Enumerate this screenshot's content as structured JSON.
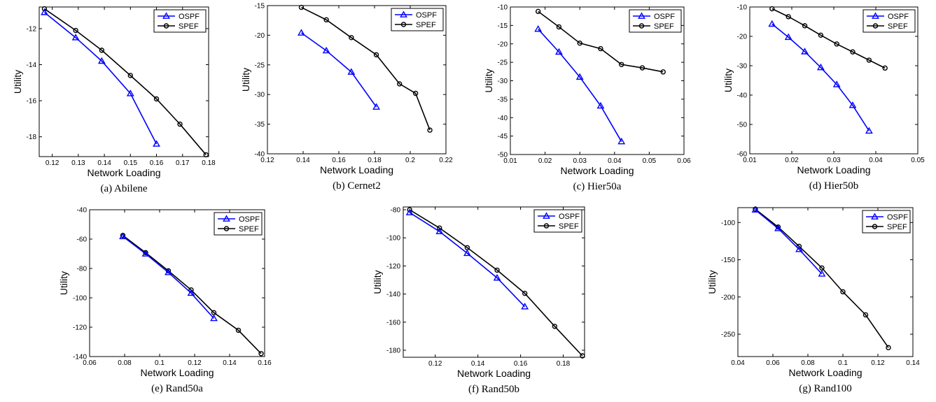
{
  "figure": {
    "series_colors": {
      "OSPF": "#0000ff",
      "SPEF": "#000000"
    },
    "series_markers": {
      "OSPF": "triangle",
      "SPEF": "circle"
    }
  },
  "chart_data": [
    {
      "type": "line",
      "caption": "(a) Abilene",
      "xlabel": "Network Loading",
      "ylabel": "Utility",
      "xlim": [
        0.115,
        0.18
      ],
      "ylim": [
        -19.1,
        -10.8
      ],
      "xticks": [
        0.12,
        0.13,
        0.14,
        0.15,
        0.16,
        0.17,
        0.18
      ],
      "xticklabels": [
        "0.12",
        "0.13",
        "0.14",
        "0.15",
        "0.16",
        "0.17",
        "0.18"
      ],
      "yticks": [
        -18,
        -16,
        -14,
        -12
      ],
      "yticklabels": [
        "-18",
        "-16",
        "-14",
        "-12"
      ],
      "legend": "top-right",
      "series": [
        {
          "name": "OSPF",
          "x": [
            0.117,
            0.129,
            0.139,
            0.15,
            0.16
          ],
          "y": [
            -11.1,
            -12.5,
            -13.8,
            -15.6,
            -18.4
          ]
        },
        {
          "name": "SPEF",
          "x": [
            0.117,
            0.129,
            0.139,
            0.15,
            0.16,
            0.169,
            0.179
          ],
          "y": [
            -10.9,
            -12.1,
            -13.2,
            -14.6,
            -15.9,
            -17.3,
            -19.0
          ]
        }
      ]
    },
    {
      "type": "line",
      "caption": "(b) Cernet2",
      "xlabel": "Network Loading",
      "ylabel": "Utility",
      "xlim": [
        0.12,
        0.22
      ],
      "ylim": [
        -40,
        -15
      ],
      "xticks": [
        0.12,
        0.14,
        0.16,
        0.18,
        0.2,
        0.22
      ],
      "xticklabels": [
        "0.12",
        "0.14",
        "0.16",
        "0.18",
        "0.2",
        "0.22"
      ],
      "yticks": [
        -40,
        -35,
        -30,
        -25,
        -20,
        -15
      ],
      "yticklabels": [
        "-40",
        "-35",
        "-30",
        "-25",
        "-20",
        "-15"
      ],
      "legend": "top-right",
      "series": [
        {
          "name": "OSPF",
          "x": [
            0.139,
            0.153,
            0.167,
            0.181
          ],
          "y": [
            -19.6,
            -22.6,
            -26.2,
            -32.1
          ]
        },
        {
          "name": "SPEF",
          "x": [
            0.139,
            0.153,
            0.167,
            0.181,
            0.194,
            0.203,
            0.211
          ],
          "y": [
            -15.3,
            -17.4,
            -20.4,
            -23.3,
            -28.2,
            -29.8,
            -36.0
          ]
        }
      ]
    },
    {
      "type": "line",
      "caption": "(c) Hier50a",
      "xlabel": "Network Loading",
      "ylabel": "Utility",
      "xlim": [
        0.01,
        0.06
      ],
      "ylim": [
        -50,
        -10
      ],
      "xticks": [
        0.01,
        0.02,
        0.03,
        0.04,
        0.05,
        0.06
      ],
      "xticklabels": [
        "0.01",
        "0.02",
        "0.03",
        "0.04",
        "0.05",
        "0.06"
      ],
      "yticks": [
        -50,
        -45,
        -40,
        -35,
        -30,
        -25,
        -20,
        -15,
        -10
      ],
      "yticklabels": [
        "-50",
        "-45",
        "-40",
        "-35",
        "-30",
        "-25",
        "-20",
        "-15",
        "-10"
      ],
      "legend": "top-right",
      "series": [
        {
          "name": "OSPF",
          "x": [
            0.018,
            0.024,
            0.03,
            0.036,
            0.042
          ],
          "y": [
            -16.0,
            -22.2,
            -29.0,
            -36.8,
            -46.5
          ]
        },
        {
          "name": "SPEF",
          "x": [
            0.018,
            0.024,
            0.03,
            0.036,
            0.042,
            0.048,
            0.054
          ],
          "y": [
            -11.2,
            -15.4,
            -19.8,
            -21.3,
            -25.6,
            -26.5,
            -27.6
          ]
        }
      ]
    },
    {
      "type": "line",
      "caption": "(d) Hier50b",
      "xlabel": "Network Loading",
      "ylabel": "Utility",
      "xlim": [
        0.01,
        0.05
      ],
      "ylim": [
        -60,
        -10
      ],
      "xticks": [
        0.01,
        0.02,
        0.03,
        0.04,
        0.05
      ],
      "xticklabels": [
        "0.01",
        "0.02",
        "0.03",
        "0.04",
        "0.05"
      ],
      "yticks": [
        -60,
        -50,
        -40,
        -30,
        -20,
        -10
      ],
      "yticklabels": [
        "-60",
        "-50",
        "-40",
        "-30",
        "-20",
        "-10"
      ],
      "legend": "top-right",
      "series": [
        {
          "name": "OSPF",
          "x": [
            0.0153,
            0.0192,
            0.0231,
            0.0269,
            0.0307,
            0.0345,
            0.0384
          ],
          "y": [
            -15.8,
            -20.3,
            -25.2,
            -30.6,
            -36.4,
            -43.5,
            -52.2
          ]
        },
        {
          "name": "SPEF",
          "x": [
            0.0153,
            0.0192,
            0.0231,
            0.0269,
            0.0307,
            0.0345,
            0.0384,
            0.0422
          ],
          "y": [
            -10.6,
            -13.3,
            -16.4,
            -19.6,
            -22.6,
            -25.3,
            -28.1,
            -30.8
          ]
        }
      ]
    },
    {
      "type": "line",
      "caption": "(e) Rand50a",
      "xlabel": "Network Loading",
      "ylabel": "Utility",
      "xlim": [
        0.06,
        0.16
      ],
      "ylim": [
        -140,
        -40
      ],
      "xticks": [
        0.06,
        0.08,
        0.1,
        0.12,
        0.14,
        0.16
      ],
      "xticklabels": [
        "0.06",
        "0.08",
        "0.1",
        "0.12",
        "0.14",
        "0.16"
      ],
      "yticks": [
        -140,
        -120,
        -100,
        -80,
        -60,
        -40
      ],
      "yticklabels": [
        "-140",
        "-120",
        "-100",
        "-80",
        "-60",
        "-40"
      ],
      "legend": "top-right",
      "series": [
        {
          "name": "OSPF",
          "x": [
            0.079,
            0.092,
            0.105,
            0.118,
            0.131
          ],
          "y": [
            -58.2,
            -70.0,
            -82.7,
            -96.8,
            -114.0
          ]
        },
        {
          "name": "SPEF",
          "x": [
            0.079,
            0.092,
            0.105,
            0.118,
            0.131,
            0.145,
            0.158
          ],
          "y": [
            -57.5,
            -69.2,
            -81.6,
            -94.6,
            -110.1,
            -122.1,
            -138.0
          ]
        }
      ]
    },
    {
      "type": "line",
      "caption": "(f) Rand50b",
      "xlabel": "Network Loading",
      "ylabel": "Utility",
      "xlim": [
        0.105,
        0.19
      ],
      "ylim": [
        -185,
        -78
      ],
      "xticks": [
        0.12,
        0.14,
        0.16,
        0.18
      ],
      "xticklabels": [
        "0.12",
        "0.14",
        "0.16",
        "0.18"
      ],
      "yticks": [
        -180,
        -160,
        -140,
        -120,
        -100,
        -80
      ],
      "yticklabels": [
        "-180",
        "-160",
        "-140",
        "-120",
        "-100",
        "-80"
      ],
      "legend": "top-right",
      "series": [
        {
          "name": "OSPF",
          "x": [
            0.108,
            0.122,
            0.135,
            0.149,
            0.162
          ],
          "y": [
            -82.0,
            -95.5,
            -111.0,
            -128.5,
            -149.0
          ]
        },
        {
          "name": "SPEF",
          "x": [
            0.108,
            0.122,
            0.135,
            0.149,
            0.162,
            0.176,
            0.189
          ],
          "y": [
            -80.0,
            -93.0,
            -107.0,
            -123.0,
            -139.5,
            -163.0,
            -184.0
          ]
        }
      ]
    },
    {
      "type": "line",
      "caption": "(g) Rand100",
      "xlabel": "Network Loading",
      "ylabel": "Utility",
      "xlim": [
        0.04,
        0.14
      ],
      "ylim": [
        -280,
        -80
      ],
      "xticks": [
        0.04,
        0.06,
        0.08,
        0.1,
        0.12,
        0.14
      ],
      "xticklabels": [
        "0.04",
        "0.06",
        "0.08",
        "0.1",
        "0.12",
        "0.14"
      ],
      "yticks": [
        -250,
        -200,
        -150,
        -100
      ],
      "yticklabels": [
        "-250",
        "-200",
        "-150",
        "-100"
      ],
      "legend": "top-right",
      "series": [
        {
          "name": "OSPF",
          "x": [
            0.05,
            0.063,
            0.075,
            0.088
          ],
          "y": [
            -83.0,
            -108.0,
            -136.0,
            -169.0
          ]
        },
        {
          "name": "SPEF",
          "x": [
            0.05,
            0.063,
            0.075,
            0.088,
            0.1,
            0.113,
            0.126
          ],
          "y": [
            -82.0,
            -106.0,
            -132.0,
            -161.0,
            -193.0,
            -224.0,
            -268.0
          ]
        }
      ]
    }
  ]
}
